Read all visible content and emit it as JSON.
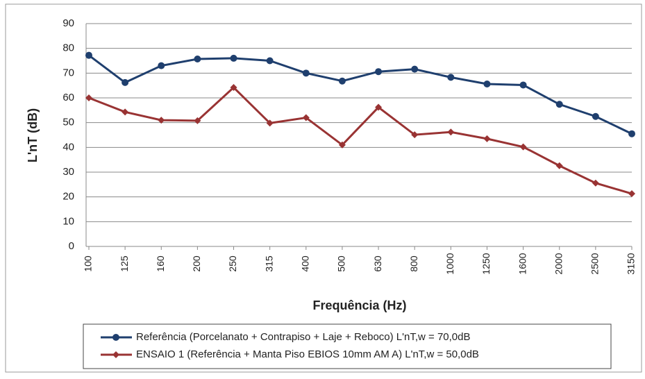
{
  "chart_data": {
    "type": "line",
    "x_label": "Frequência (Hz)",
    "y_label": "L'nT (dB)",
    "categories": [
      "100",
      "125",
      "160",
      "200",
      "250",
      "315",
      "400",
      "500",
      "630",
      "800",
      "1000",
      "1250",
      "1600",
      "2000",
      "2500",
      "3150"
    ],
    "series": [
      {
        "name": "Referência (Porcelanato + Contrapiso + Laje + Reboco) L'nT,w = 70,0dB",
        "color": "#1f3f6e",
        "marker": "circle",
        "values": [
          77.2,
          66.2,
          73,
          75.7,
          76,
          75,
          70,
          66.8,
          70.6,
          71.6,
          68.3,
          65.6,
          65.2,
          57.4,
          52.5,
          45.5
        ]
      },
      {
        "name": "ENSAIO 1 (Referência + Manta Piso EBIOS 10mm AM A) L'nT,w = 50,0dB",
        "color": "#993333",
        "marker": "diamond",
        "values": [
          60,
          54.3,
          51,
          50.8,
          64.2,
          49.8,
          52,
          41,
          56.2,
          45.1,
          46.2,
          43.5,
          40.2,
          32.6,
          25.6,
          21.3
        ]
      }
    ],
    "ylim": [
      0,
      90
    ],
    "yticks": [
      0,
      10,
      20,
      30,
      40,
      50,
      60,
      70,
      80,
      90
    ],
    "grid": true,
    "legend": "bottom"
  }
}
